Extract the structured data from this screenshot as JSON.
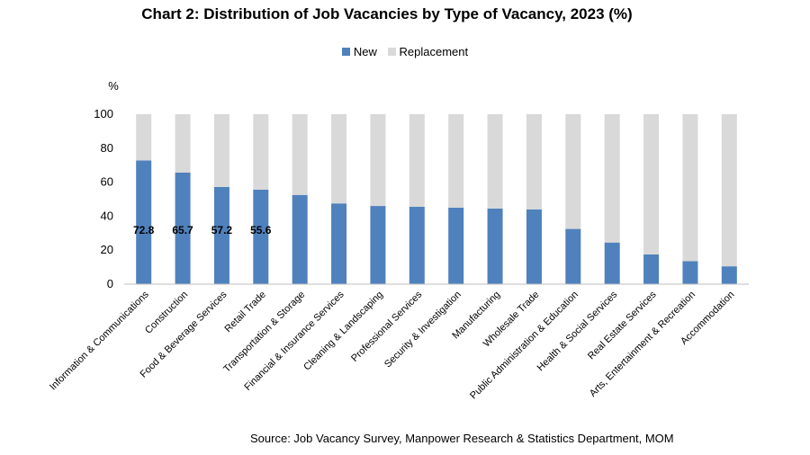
{
  "chart_data": {
    "type": "bar",
    "stacked": true,
    "title": "Chart 2: Distribution of Job Vacancies by Type of Vacancy, 2023 (%)",
    "ylabel": "%",
    "ylim": [
      0,
      100
    ],
    "yticks": [
      0,
      20,
      40,
      60,
      80,
      100
    ],
    "legend_position": "top-center",
    "grid": false,
    "categories": [
      "Information & Communications",
      "Construction",
      "Food & Beverage Services",
      "Retail Trade",
      "Transportation & Storage",
      "Financial & Insurance Services",
      "Cleaning & Landscaping",
      "Professional Services",
      "Security & Investigation",
      "Manufacturing",
      "Wholesale Trade",
      "Public Administration & Education",
      "Health & Social Services",
      "Real Estate Services",
      "Arts, Entertainment & Recreation",
      "Accommodation"
    ],
    "series": [
      {
        "name": "New",
        "color": "#4f81bd",
        "values": [
          72.8,
          65.7,
          57.2,
          55.6,
          52.5,
          47.5,
          46.0,
          45.5,
          45.0,
          44.5,
          44.0,
          32.5,
          24.5,
          17.5,
          13.5,
          10.5
        ],
        "data_labels": [
          "72.8",
          "65.7",
          "57.2",
          "55.6",
          null,
          null,
          null,
          null,
          null,
          null,
          null,
          null,
          null,
          null,
          null,
          null
        ]
      },
      {
        "name": "Replacement",
        "color": "#d9d9d9",
        "values": [
          27.2,
          34.3,
          42.8,
          44.4,
          47.5,
          52.5,
          54.0,
          54.5,
          55.0,
          55.5,
          56.0,
          67.5,
          75.5,
          82.5,
          86.5,
          89.5
        ]
      }
    ]
  },
  "source": "Source: Job Vacancy Survey, Manpower Research & Statistics Department, MOM"
}
